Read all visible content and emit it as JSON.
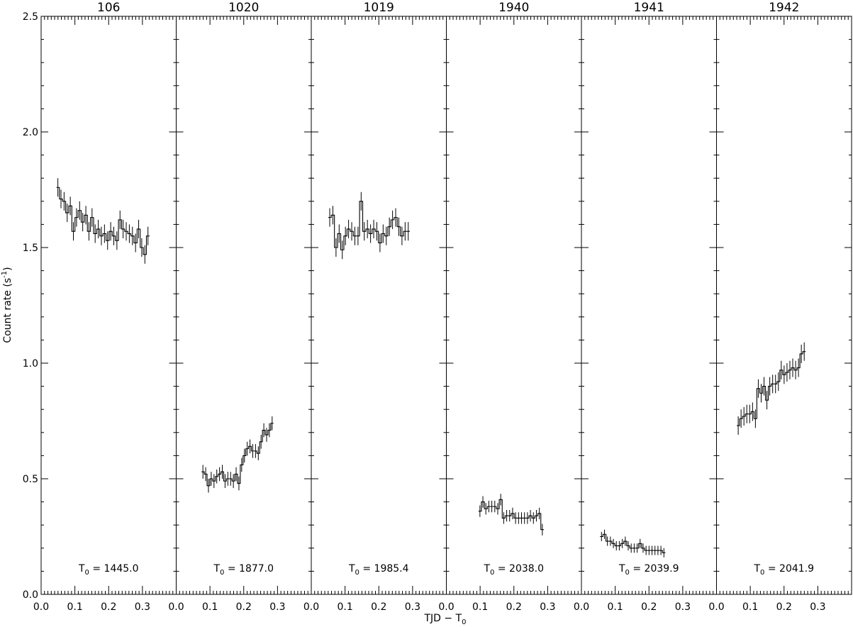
{
  "chart_data": {
    "type": "line",
    "style": "step-histogram with error bars",
    "xlabel": "TJD − T",
    "xlabel_sub": "0",
    "ylabel": "Count rate (s",
    "ylabel_sup": "-1",
    "ylabel_end": ")",
    "ylim": [
      0,
      2.5
    ],
    "xlim": [
      0,
      0.4
    ],
    "y_ticks": [
      "0.0",
      "0.5",
      "1.0",
      "1.5",
      "2.0",
      "2.5"
    ],
    "y_tick_values": [
      0,
      0.5,
      1.0,
      1.5,
      2.0,
      2.5
    ],
    "x_ticks": [
      "0.0",
      "0.1",
      "0.2",
      "0.3"
    ],
    "x_tick_values": [
      0,
      0.1,
      0.2,
      0.3
    ],
    "t0_prefix": "T",
    "t0_sub": "0",
    "t0_eq": " = ",
    "panels": [
      {
        "title": "106",
        "t0": "1445.0",
        "x_start": 0.045,
        "dx": 0.0092,
        "values": [
          1.76,
          1.71,
          1.7,
          1.65,
          1.68,
          1.57,
          1.63,
          1.66,
          1.61,
          1.64,
          1.57,
          1.63,
          1.56,
          1.58,
          1.55,
          1.56,
          1.53,
          1.57,
          1.55,
          1.53,
          1.62,
          1.58,
          1.57,
          1.56,
          1.55,
          1.52,
          1.58,
          1.5,
          1.47,
          1.55
        ],
        "error": 0.04
      },
      {
        "title": "1020",
        "t0": "1877.0",
        "x_start": 0.075,
        "dx": 0.0082,
        "values": [
          0.53,
          0.52,
          0.47,
          0.5,
          0.49,
          0.51,
          0.52,
          0.53,
          0.49,
          0.5,
          0.5,
          0.49,
          0.52,
          0.48,
          0.56,
          0.6,
          0.63,
          0.64,
          0.62,
          0.62,
          0.61,
          0.66,
          0.71,
          0.69,
          0.71,
          0.74
        ],
        "error": 0.03
      },
      {
        "title": "1019",
        "t0": "1985.4",
        "x_start": 0.05,
        "dx": 0.0093,
        "values": [
          1.63,
          1.64,
          1.5,
          1.56,
          1.49,
          1.55,
          1.58,
          1.57,
          1.55,
          1.55,
          1.7,
          1.57,
          1.58,
          1.56,
          1.58,
          1.57,
          1.52,
          1.56,
          1.55,
          1.59,
          1.62,
          1.63,
          1.59,
          1.55,
          1.57,
          1.57
        ],
        "error": 0.04
      },
      {
        "title": "1940",
        "t0": "2038.0",
        "x_start": 0.095,
        "dx": 0.0088,
        "values": [
          0.36,
          0.4,
          0.37,
          0.38,
          0.38,
          0.38,
          0.37,
          0.41,
          0.33,
          0.34,
          0.34,
          0.35,
          0.33,
          0.33,
          0.33,
          0.33,
          0.33,
          0.34,
          0.33,
          0.34,
          0.35,
          0.28
        ],
        "error": 0.025
      },
      {
        "title": "1941",
        "t0": "2039.9",
        "x_start": 0.055,
        "dx": 0.0088,
        "values": [
          0.25,
          0.26,
          0.23,
          0.23,
          0.22,
          0.21,
          0.21,
          0.22,
          0.23,
          0.21,
          0.2,
          0.2,
          0.2,
          0.22,
          0.2,
          0.19,
          0.19,
          0.19,
          0.19,
          0.19,
          0.19,
          0.18
        ],
        "error": 0.02
      },
      {
        "title": "1942",
        "t0": "2041.9",
        "x_start": 0.06,
        "dx": 0.0085,
        "values": [
          0.73,
          0.76,
          0.77,
          0.78,
          0.78,
          0.79,
          0.76,
          0.89,
          0.87,
          0.9,
          0.84,
          0.9,
          0.91,
          0.91,
          0.92,
          0.97,
          0.95,
          0.96,
          0.97,
          0.98,
          0.97,
          0.98,
          1.04,
          1.05
        ],
        "error": 0.04
      }
    ]
  }
}
